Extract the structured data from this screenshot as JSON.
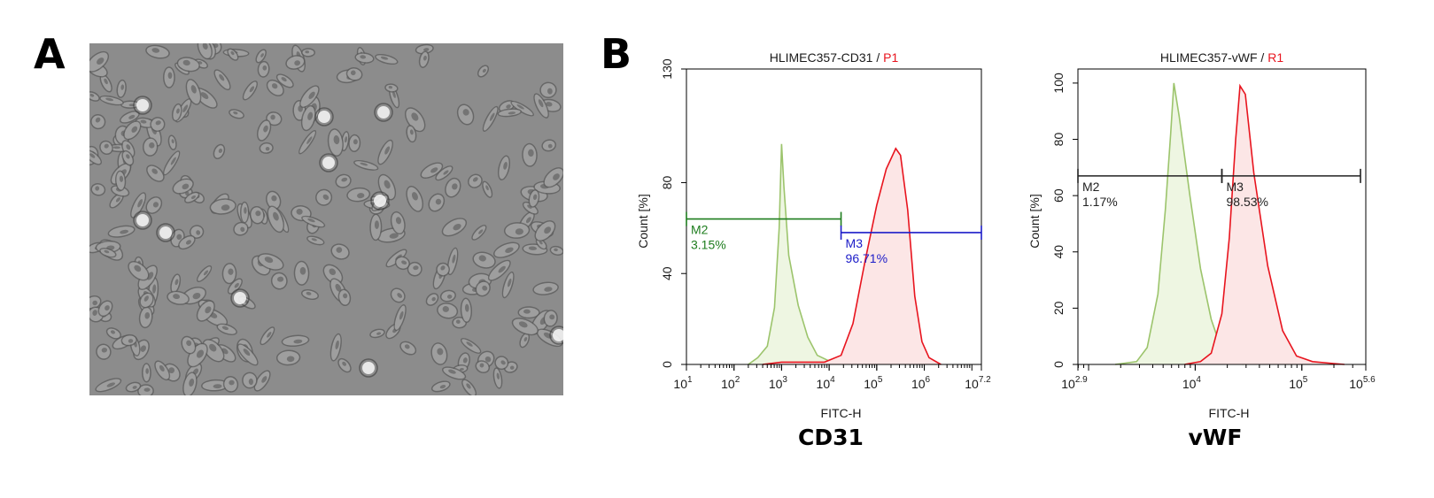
{
  "panel_labels": {
    "a": "A",
    "b": "B"
  },
  "captions": {
    "left": "CD31",
    "right": "vWF"
  },
  "chart_data": [
    {
      "type": "area",
      "title_main": "HLIMEC357-CD31",
      "title_sep": " / ",
      "title_gate": "P1",
      "xlabel": "FITC-H",
      "ylabel": "Count  [%]",
      "x_scale": "log",
      "xlim": [
        1,
        7.2
      ],
      "ylim": [
        0,
        130
      ],
      "yticks": [
        0,
        40,
        80,
        130
      ],
      "xticks": [
        {
          "pos": 1,
          "base": "10",
          "exp": "1"
        },
        {
          "pos": 2,
          "base": "10",
          "exp": "2"
        },
        {
          "pos": 3,
          "base": "10",
          "exp": "3"
        },
        {
          "pos": 4,
          "base": "10",
          "exp": "4"
        },
        {
          "pos": 5,
          "base": "10",
          "exp": "5"
        },
        {
          "pos": 6,
          "base": "10",
          "exp": "6"
        },
        {
          "pos": 7.2,
          "base": "10",
          "exp": "7.2"
        }
      ],
      "series": [
        {
          "color": "#9cc46c",
          "fill": "#eef6e2",
          "points": [
            [
              2.3,
              0
            ],
            [
              2.5,
              3
            ],
            [
              2.7,
              8
            ],
            [
              2.85,
              25
            ],
            [
              2.95,
              60
            ],
            [
              3.0,
              97
            ],
            [
              3.05,
              78
            ],
            [
              3.15,
              48
            ],
            [
              3.35,
              26
            ],
            [
              3.55,
              12
            ],
            [
              3.75,
              4
            ],
            [
              4.0,
              1.5
            ],
            [
              4.3,
              0
            ]
          ]
        },
        {
          "color": "#e8141e",
          "fill": "#fce6e6",
          "points": [
            [
              2.6,
              0
            ],
            [
              3.0,
              1
            ],
            [
              3.5,
              1
            ],
            [
              3.9,
              1
            ],
            [
              4.25,
              4
            ],
            [
              4.5,
              18
            ],
            [
              4.75,
              45
            ],
            [
              5.0,
              70
            ],
            [
              5.2,
              86
            ],
            [
              5.4,
              95
            ],
            [
              5.5,
              92
            ],
            [
              5.65,
              68
            ],
            [
              5.8,
              30
            ],
            [
              5.95,
              10
            ],
            [
              6.1,
              3
            ],
            [
              6.35,
              0
            ]
          ]
        }
      ],
      "markers": [
        {
          "name": "M2",
          "pct": "3.15%",
          "color": "#1e7d1e",
          "x_from": 1,
          "x_to": 4.25,
          "y": 64
        },
        {
          "name": "M3",
          "pct": "96.71%",
          "color": "#1c1cc8",
          "x_from": 4.25,
          "x_to": 7.2,
          "y": 58
        }
      ]
    },
    {
      "type": "area",
      "title_main": "HLIMEC357-vWF",
      "title_sep": " / ",
      "title_gate": "R1",
      "xlabel": "FITC-H",
      "ylabel": "Count  [%]",
      "x_scale": "log",
      "xlim": [
        2.9,
        5.6
      ],
      "ylim": [
        0,
        105
      ],
      "yticks": [
        0,
        20,
        40,
        60,
        80,
        100
      ],
      "xticks": [
        {
          "pos": 2.9,
          "base": "10",
          "exp": "2.9"
        },
        {
          "pos": 4,
          "base": "10",
          "exp": "4"
        },
        {
          "pos": 5,
          "base": "10",
          "exp": "5"
        },
        {
          "pos": 5.6,
          "base": "10",
          "exp": "5.6"
        }
      ],
      "series": [
        {
          "color": "#9cc46c",
          "fill": "#eef6e2",
          "points": [
            [
              3.25,
              0
            ],
            [
              3.45,
              1
            ],
            [
              3.55,
              6
            ],
            [
              3.65,
              25
            ],
            [
              3.72,
              55
            ],
            [
              3.77,
              82
            ],
            [
              3.8,
              100
            ],
            [
              3.85,
              88
            ],
            [
              3.95,
              60
            ],
            [
              4.05,
              34
            ],
            [
              4.15,
              16
            ],
            [
              4.25,
              5
            ],
            [
              4.35,
              1
            ],
            [
              4.45,
              0
            ]
          ]
        },
        {
          "color": "#e8141e",
          "fill": "#fce6e6",
          "points": [
            [
              3.9,
              0
            ],
            [
              4.05,
              1
            ],
            [
              4.15,
              4
            ],
            [
              4.25,
              18
            ],
            [
              4.32,
              45
            ],
            [
              4.38,
              80
            ],
            [
              4.42,
              99
            ],
            [
              4.47,
              96
            ],
            [
              4.55,
              68
            ],
            [
              4.68,
              35
            ],
            [
              4.82,
              12
            ],
            [
              4.95,
              3
            ],
            [
              5.1,
              1
            ],
            [
              5.3,
              0.3
            ],
            [
              5.4,
              0
            ]
          ]
        }
      ],
      "markers": [
        {
          "name": "M2",
          "pct": "1.17%",
          "color": "#222222",
          "x_from": 2.9,
          "x_to": 4.25,
          "y": 67
        },
        {
          "name": "M3",
          "pct": "98.53%",
          "color": "#222222",
          "x_from": 4.25,
          "x_to": 5.55,
          "y": 67
        }
      ]
    }
  ]
}
